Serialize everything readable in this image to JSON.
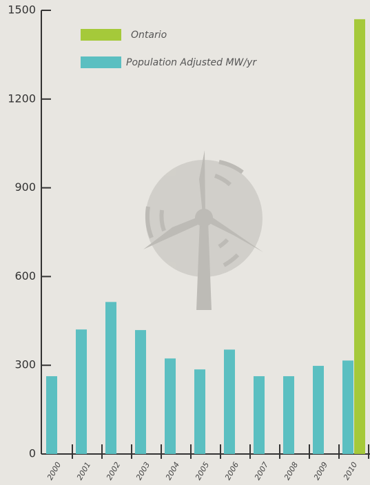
{
  "chart_data": {
    "type": "bar",
    "categories": [
      "2000",
      "2001",
      "2002",
      "2003",
      "2004",
      "2005",
      "2006",
      "2007",
      "2008",
      "2009",
      "2010"
    ],
    "series": [
      {
        "name": "Population Adjusted MW/yr",
        "color": "#5bbfc1",
        "values": [
          263,
          421,
          514,
          419,
          323,
          286,
          353,
          263,
          263,
          298,
          316
        ]
      },
      {
        "name": "Ontario",
        "color": "#a5c93a",
        "values": [
          null,
          null,
          null,
          null,
          null,
          null,
          null,
          null,
          null,
          null,
          1470
        ]
      }
    ],
    "ylim": [
      0,
      1500
    ],
    "yticks": [
      0,
      300,
      600,
      900,
      1200,
      1500
    ]
  }
}
